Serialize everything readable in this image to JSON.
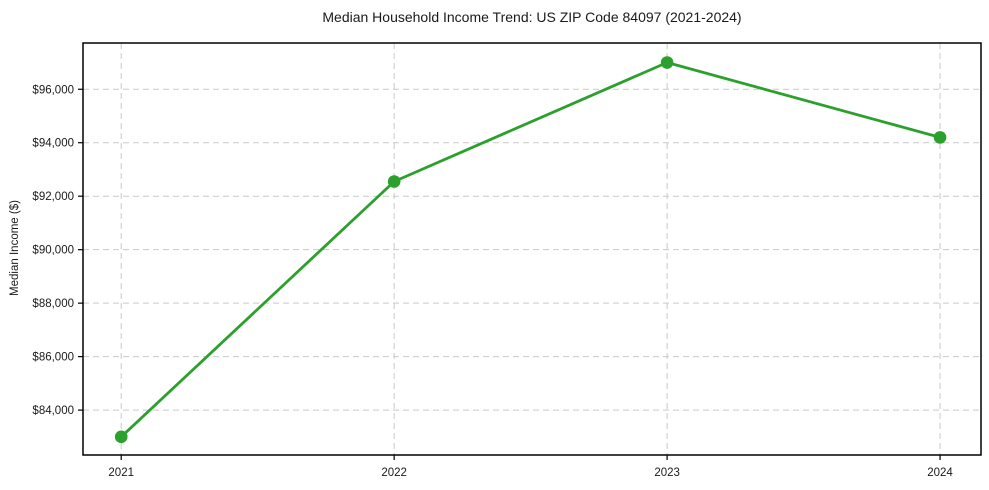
{
  "page": {
    "background_color": "#ffffff"
  },
  "chart_data": {
    "type": "line",
    "title": "Median Household Income Trend: US ZIP Code 84097 (2021-2024)",
    "xlabel": "",
    "ylabel": "Median Income ($)",
    "x": [
      2021,
      2022,
      2023,
      2024
    ],
    "values": [
      83000,
      92550,
      97000,
      94200
    ],
    "x_tick_labels": [
      "2021",
      "2022",
      "2023",
      "2024"
    ],
    "y_ticks": [
      84000,
      86000,
      88000,
      90000,
      92000,
      94000,
      96000
    ],
    "y_tick_labels": [
      "$84,000",
      "$86,000",
      "$88,000",
      "$90,000",
      "$92,000",
      "$94,000",
      "$96,000"
    ],
    "xlim": [
      2020.86,
      2024.15
    ],
    "ylim": [
      82320,
      97730
    ],
    "grid": true,
    "grid_style": "dashed",
    "legend": "none",
    "style": {
      "line_color": "#2ca02c",
      "marker_color": "#2ca02c",
      "grid_color": "#c9c9c9",
      "spine_color": "#000000",
      "text_color": "#1a1a1a",
      "marker_radius": 6.3,
      "line_width": 2.8
    }
  }
}
